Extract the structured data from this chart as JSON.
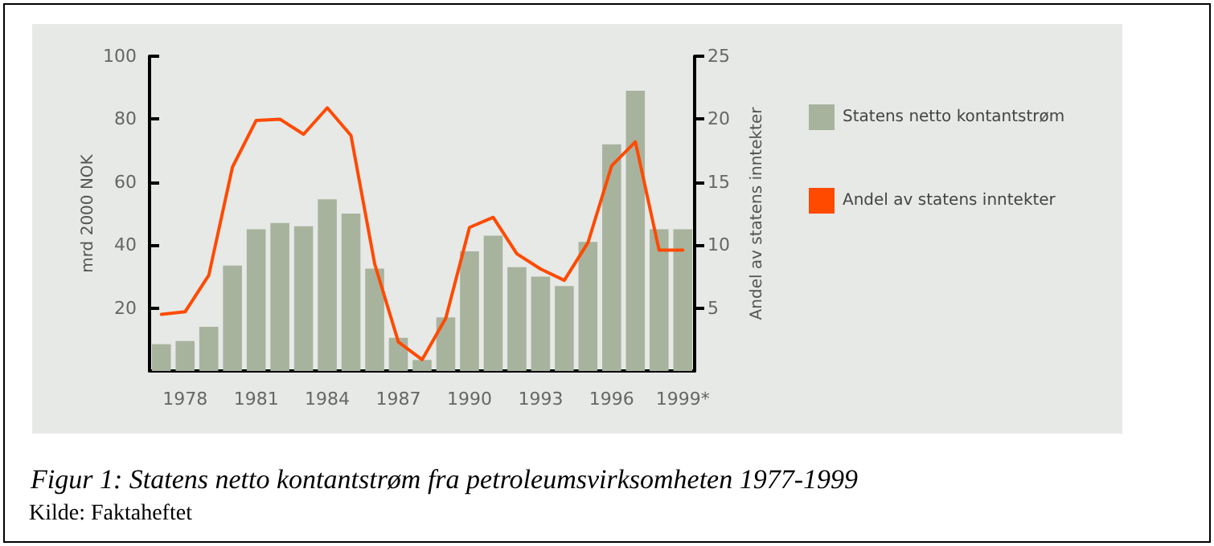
{
  "chart_data": {
    "type": "bar",
    "title": "Figur 1: Statens netto kontantstrøm fra petroleumsvirksomheten 1977-1999",
    "annotations": [
      "Kilde: Faktaheftet"
    ],
    "ylabel": "mrd 2000 NOK",
    "y2label": "Andel av statens inntekter",
    "categories": [
      null,
      "1978",
      null,
      null,
      "1981",
      null,
      null,
      "1984",
      null,
      null,
      "1987",
      null,
      null,
      "1990",
      null,
      null,
      "1993",
      null,
      null,
      "1996",
      null,
      null,
      "1999*"
    ],
    "series": [
      {
        "name": "Statens netto kontantstrøm",
        "color": "#a8b39e",
        "values": [
          8.5,
          9.5,
          14,
          33.5,
          45,
          47,
          46,
          54.5,
          50,
          32.5,
          10.5,
          3.5,
          17,
          38,
          43,
          33,
          30,
          27,
          41,
          72,
          89,
          45,
          45
        ]
      },
      {
        "name": "Andel av statens inntekter",
        "type": "line",
        "axis": "y2",
        "color": "#ff4a00",
        "values": [
          4.5,
          4.7,
          7.6,
          16.2,
          19.9,
          20,
          18.8,
          20.9,
          18.7,
          8.5,
          2.3,
          0.9,
          4.2,
          11.4,
          12.2,
          9.3,
          8.1,
          7.2,
          10.2,
          16.3,
          18.2,
          9.6,
          9.6
        ]
      }
    ],
    "ylim": [
      0,
      100
    ],
    "yticks": [
      20,
      40,
      60,
      80,
      100
    ],
    "y2lim": [
      0,
      25
    ],
    "y2ticks": [
      5,
      10,
      15,
      20,
      25
    ],
    "legend": "right",
    "grid": false,
    "marker": "none"
  }
}
